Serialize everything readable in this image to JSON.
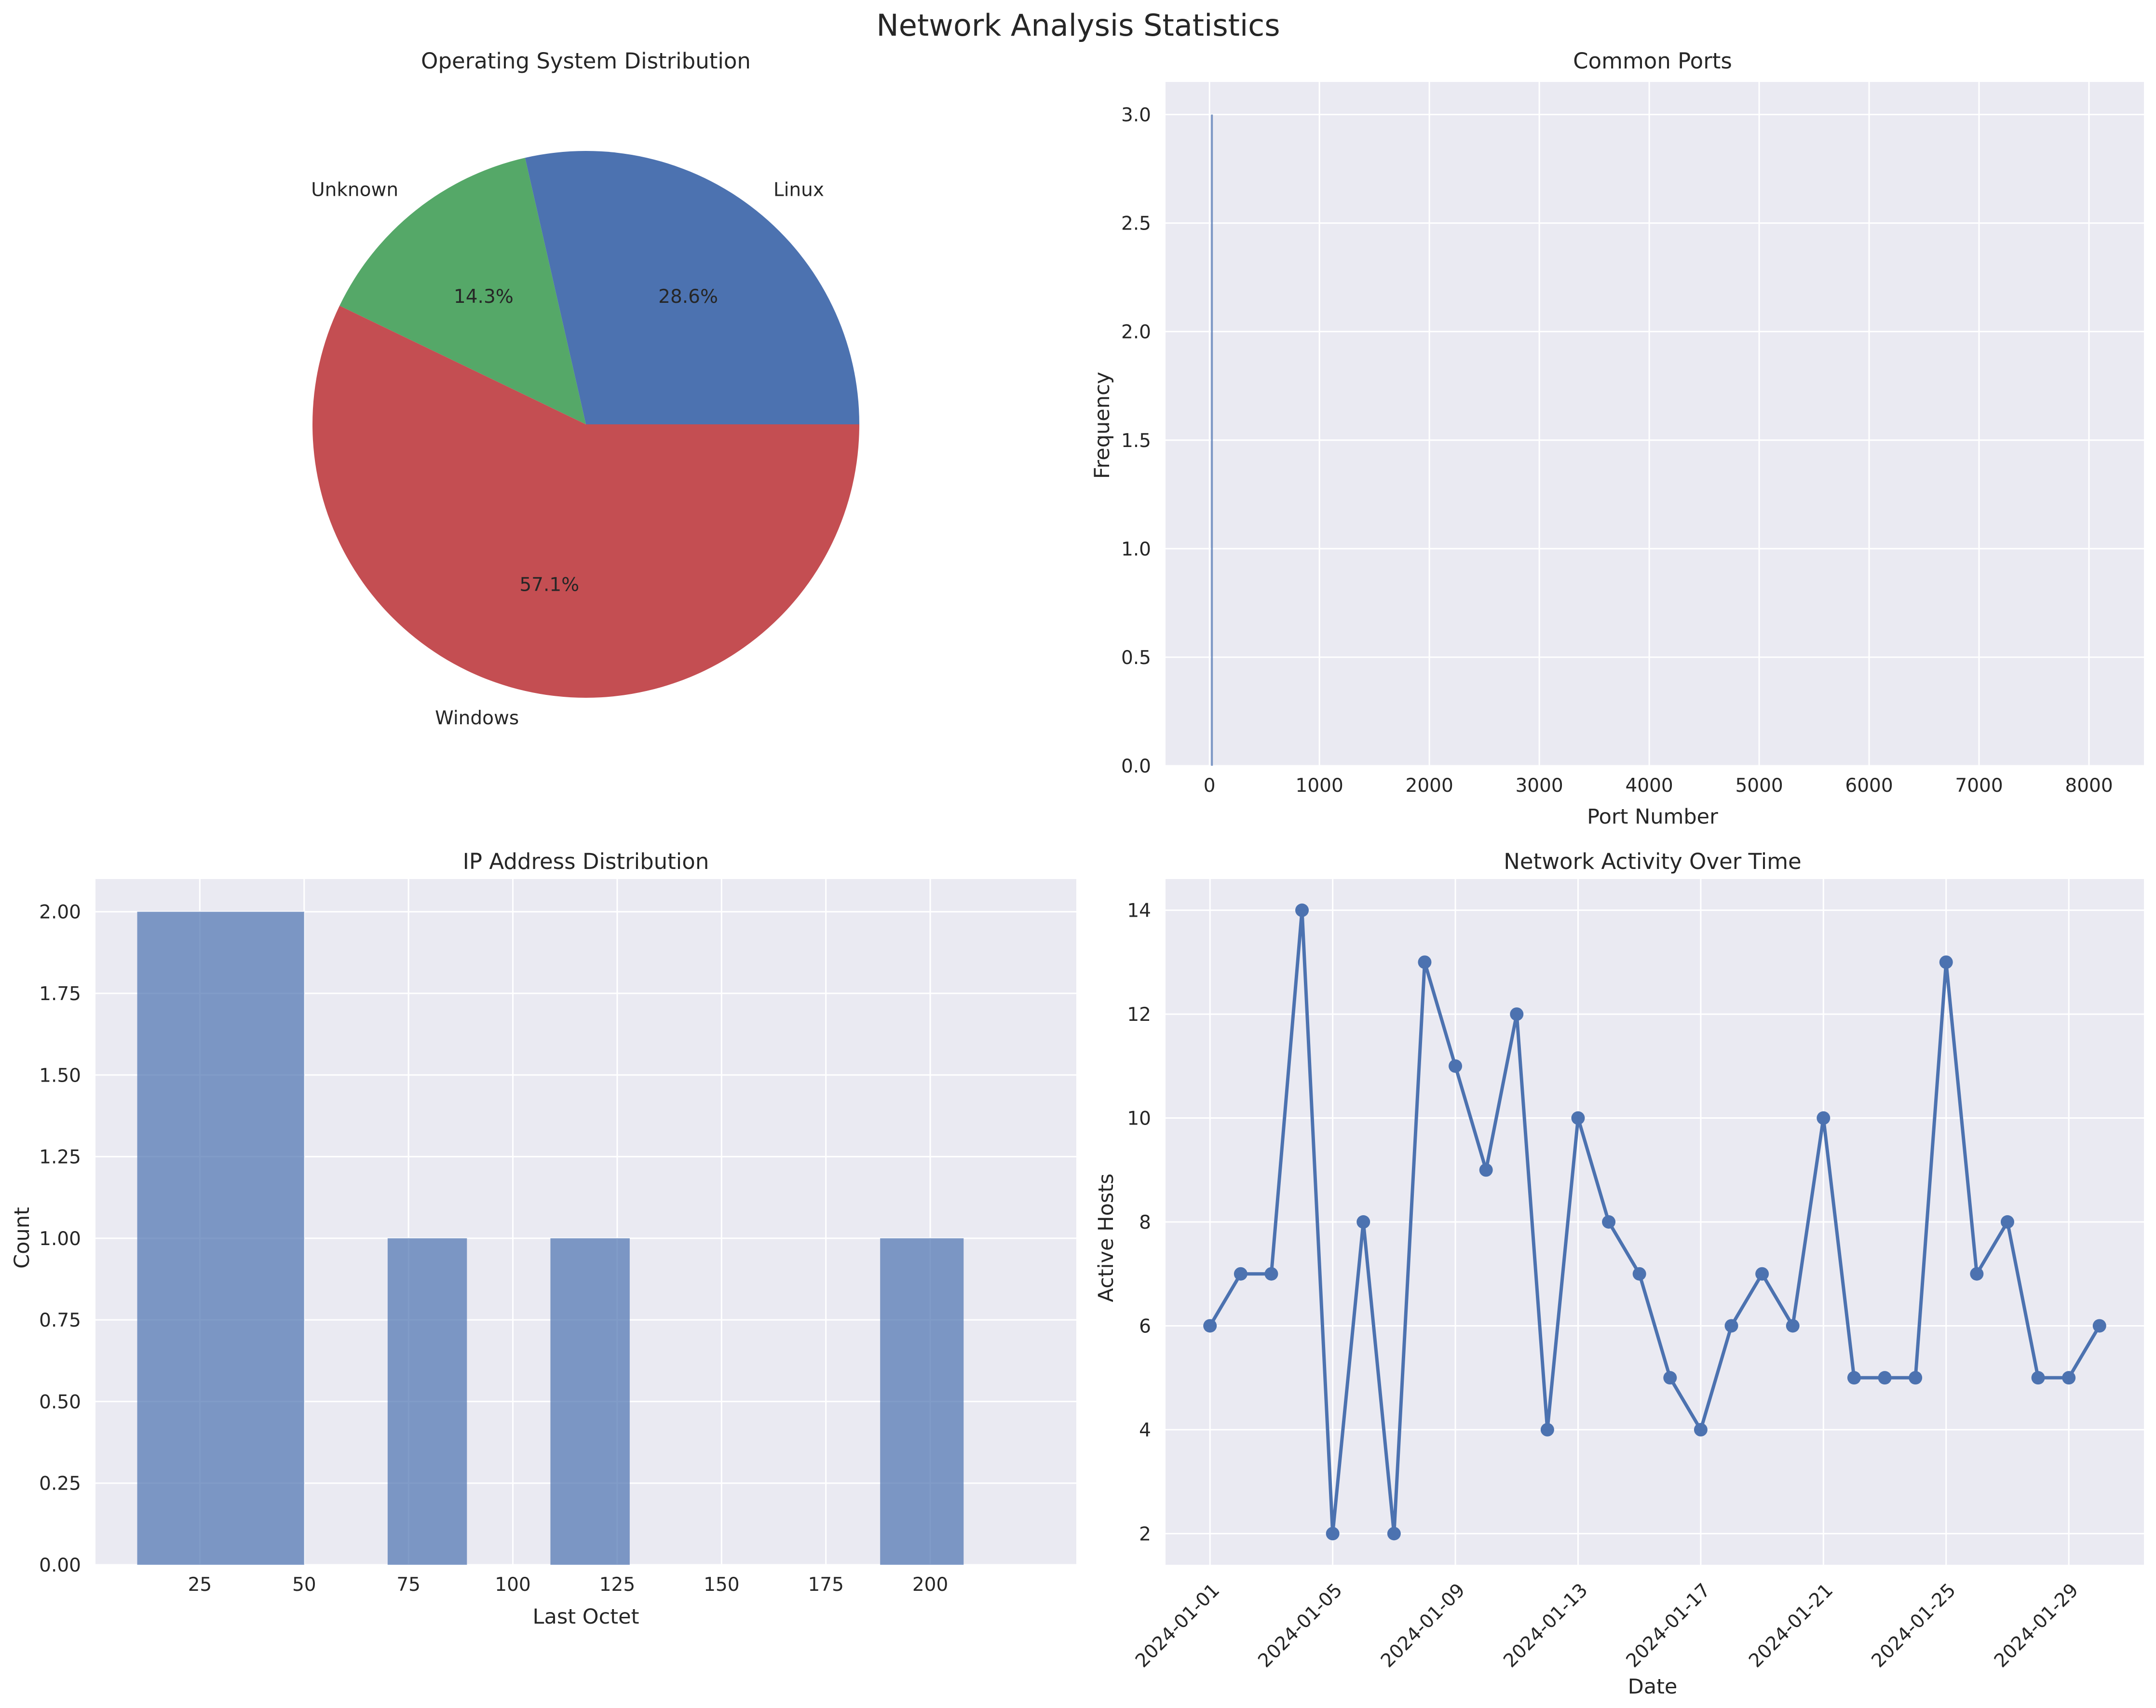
{
  "figure": {
    "title": "Network Analysis Statistics"
  },
  "colors": {
    "axes_bg": "#EAEAF2",
    "grid": "#FFFFFF",
    "blue": "#4C72B0",
    "green": "#55A868",
    "red": "#C44E52",
    "text": "#262626"
  },
  "chart_data": [
    {
      "type": "pie",
      "title": "Operating System Distribution",
      "labels": [
        "Linux",
        "Unknown",
        "Windows"
      ],
      "values": [
        2,
        1,
        4
      ],
      "percent_labels": [
        "28.6%",
        "14.3%",
        "57.1%"
      ],
      "colors": [
        "#4C72B0",
        "#55A868",
        "#C44E52"
      ],
      "startangle": 0
    },
    {
      "type": "bar",
      "title": "Common Ports",
      "xlabel": "Port Number",
      "ylabel": "Frequency",
      "xlim": [
        -400,
        8500
      ],
      "ylim": [
        0,
        3.15
      ],
      "xticks": [
        0,
        1000,
        2000,
        3000,
        4000,
        5000,
        6000,
        7000,
        8000
      ],
      "yticks": [
        0,
        0.5,
        1.0,
        1.5,
        2.0,
        2.5,
        3.0
      ],
      "ytick_labels": [
        "0.0",
        "0.5",
        "1.0",
        "1.5",
        "2.0",
        "2.5",
        "3.0"
      ],
      "grid": true,
      "bars": [
        {
          "x": 22,
          "value": 3
        }
      ]
    },
    {
      "type": "bar",
      "title": "IP Address Distribution",
      "xlabel": "Last Octet",
      "ylabel": "Count",
      "xlim": [
        0,
        235
      ],
      "ylim": [
        0,
        2.1
      ],
      "xticks": [
        25,
        50,
        75,
        100,
        125,
        150,
        175,
        200
      ],
      "yticks": [
        0,
        0.25,
        0.5,
        0.75,
        1.0,
        1.25,
        1.5,
        1.75,
        2.0
      ],
      "ytick_labels": [
        "0.00",
        "0.25",
        "0.50",
        "0.75",
        "1.00",
        "1.25",
        "1.50",
        "1.75",
        "2.00"
      ],
      "grid": true,
      "bins": [
        {
          "start": 10,
          "end": 50,
          "value": 2
        },
        {
          "start": 70,
          "end": 89,
          "value": 1
        },
        {
          "start": 109,
          "end": 128,
          "value": 1
        },
        {
          "start": 188,
          "end": 208,
          "value": 1
        }
      ]
    },
    {
      "type": "line",
      "title": "Network Activity Over Time",
      "xlabel": "Date",
      "ylabel": "Active Hosts",
      "ylim": [
        1.4,
        14.6
      ],
      "yticks": [
        2,
        4,
        6,
        8,
        10,
        12,
        14
      ],
      "grid": true,
      "x": [
        "2024-01-01",
        "2024-01-02",
        "2024-01-03",
        "2024-01-04",
        "2024-01-05",
        "2024-01-06",
        "2024-01-07",
        "2024-01-08",
        "2024-01-09",
        "2024-01-10",
        "2024-01-11",
        "2024-01-12",
        "2024-01-13",
        "2024-01-14",
        "2024-01-15",
        "2024-01-16",
        "2024-01-17",
        "2024-01-18",
        "2024-01-19",
        "2024-01-20",
        "2024-01-21",
        "2024-01-22",
        "2024-01-23",
        "2024-01-24",
        "2024-01-25",
        "2024-01-26",
        "2024-01-27",
        "2024-01-28",
        "2024-01-29",
        "2024-01-30"
      ],
      "values": [
        6,
        7,
        7,
        14,
        2,
        8,
        2,
        13,
        11,
        9,
        12,
        4,
        10,
        8,
        7,
        5,
        4,
        6,
        7,
        6,
        10,
        5,
        5,
        5,
        13,
        7,
        8,
        5,
        5,
        6
      ],
      "xtick_labels": [
        "2024-01-01",
        "2024-01-05",
        "2024-01-09",
        "2024-01-13",
        "2024-01-17",
        "2024-01-21",
        "2024-01-25",
        "2024-01-29"
      ],
      "marker": "o"
    }
  ]
}
